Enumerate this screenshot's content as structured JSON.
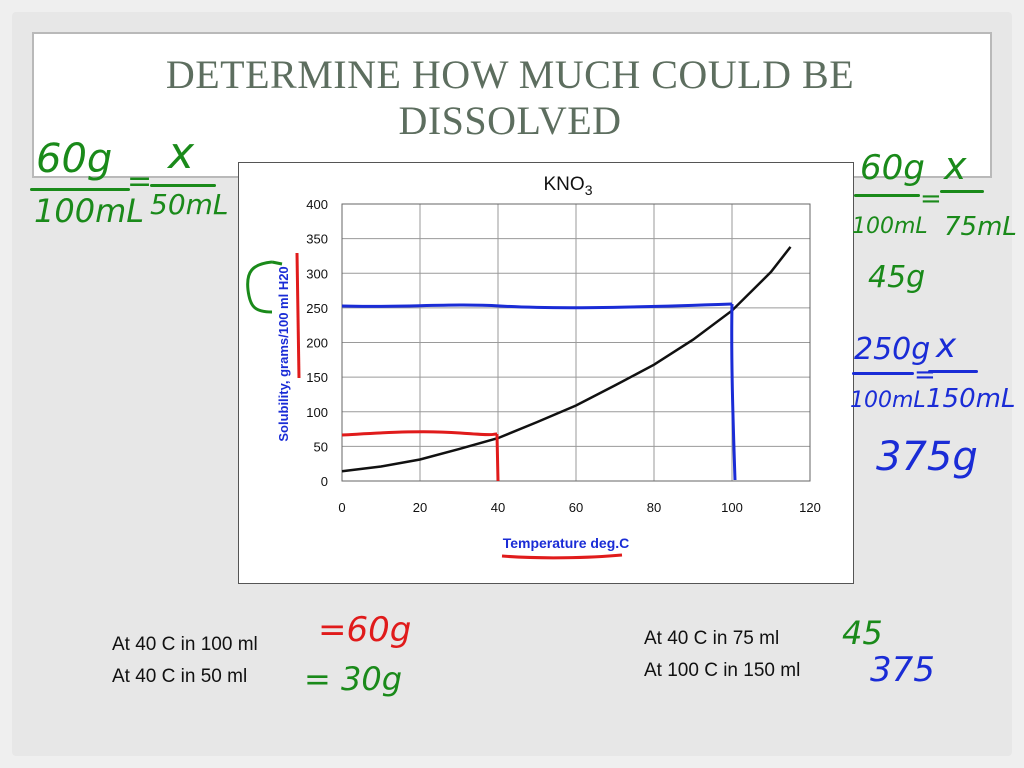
{
  "slide": {
    "title": "DETERMINE HOW MUCH COULD BE DISSOLVED"
  },
  "notes_left": {
    "line1": "At 40 C in 100 ml",
    "line1_answer": "=60g",
    "line2": "At 40 C in 50 ml",
    "line2_answer": "= 30g"
  },
  "notes_right": {
    "line1": "At 40 C in 75 ml",
    "line1_answer": "45",
    "line2": "At 100 C in 150 ml",
    "line2_answer": "375"
  },
  "handwriting_left": {
    "numerator1": "60g",
    "denominator1": "100mL",
    "equals": "=",
    "numerator2": "x",
    "denominator2": "50mL"
  },
  "handwriting_right": {
    "eq1_numerator1": "60g",
    "eq1_denominator1": "100mL",
    "eq1_equals": "=",
    "eq1_numerator2": "x",
    "eq1_denominator2": "75mL",
    "eq1_result": "45g",
    "eq2_numerator1": "250g",
    "eq2_denominator1": "100mL",
    "eq2_equals": "=",
    "eq2_numerator2": "x",
    "eq2_denominator2": "150mL",
    "eq2_result": "375g"
  },
  "colors": {
    "green_ink": "#1a8a1a",
    "blue_ink": "#1a2cd6",
    "red_ink": "#e01b1b",
    "curve": "#111111",
    "axis_label": "#1a2cd6"
  },
  "chart_data": {
    "type": "line",
    "title": "KNO3",
    "xlabel": "Temperature  deg.C",
    "ylabel": "Solubility, grams/100 ml H20",
    "xlim": [
      0,
      120
    ],
    "ylim": [
      0,
      400
    ],
    "xticks": [
      0,
      20,
      40,
      60,
      80,
      100,
      120
    ],
    "yticks": [
      0,
      50,
      100,
      150,
      200,
      250,
      300,
      350,
      400
    ],
    "grid": true,
    "series": [
      {
        "x": [
          0,
          10,
          20,
          30,
          40,
          50,
          60,
          70,
          80,
          90,
          100,
          110,
          115
        ],
        "y": [
          14,
          21,
          31,
          46,
          62,
          85,
          109,
          138,
          168,
          204,
          246,
          302,
          338
        ]
      }
    ],
    "annotations": [
      {
        "color": "#1a2cd6",
        "x": [
          0,
          100
        ],
        "y_level": 250,
        "kind": "horizontal-then-down"
      },
      {
        "color": "#e01b1b",
        "x": [
          0,
          40
        ],
        "y_level": 65,
        "kind": "horizontal-then-down"
      }
    ]
  }
}
